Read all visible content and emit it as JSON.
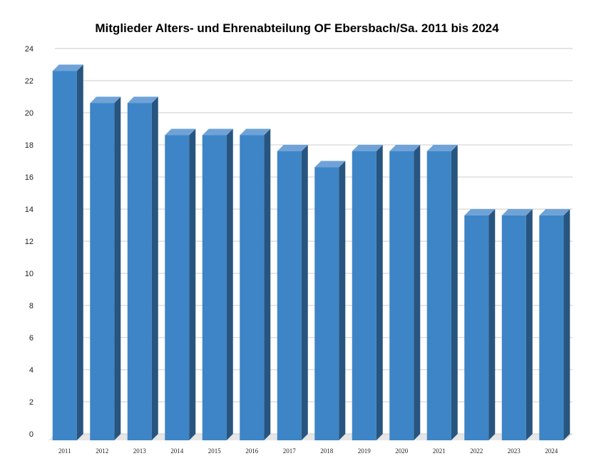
{
  "chart_data": {
    "type": "bar",
    "title": "Mitglieder Alters- und Ehrenabteilung OF Ebersbach/Sa. 2011 bis 2024",
    "categories": [
      "2011",
      "2012",
      "2013",
      "2014",
      "2015",
      "2016",
      "2017",
      "2018",
      "2019",
      "2020",
      "2021",
      "2022",
      "2023",
      "2024"
    ],
    "values": [
      23,
      21,
      21,
      19,
      19,
      19,
      18,
      17,
      18,
      18,
      18,
      14,
      14,
      14
    ],
    "ylim": [
      0,
      24
    ],
    "yticks": [
      0,
      2,
      4,
      6,
      8,
      10,
      12,
      14,
      16,
      18,
      20,
      22,
      24
    ],
    "grid": true,
    "legend": "none",
    "colors": {
      "front": "#3d85c6",
      "top": "#6fa3d8",
      "side": "#27557f",
      "grid": "#cccccc",
      "floor": "#e6e6e6"
    }
  }
}
